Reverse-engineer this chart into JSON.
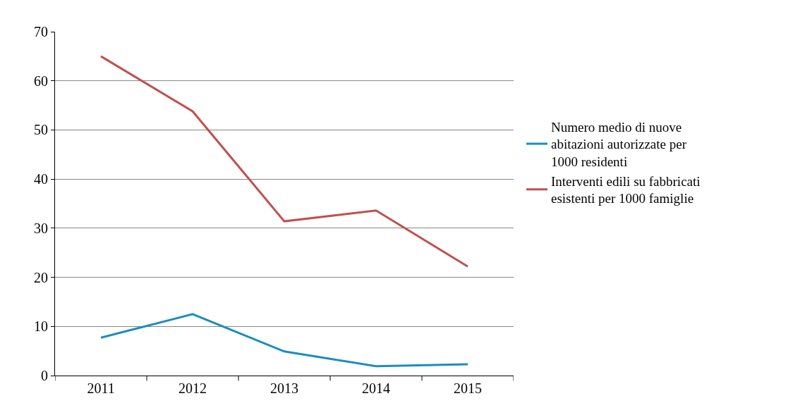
{
  "chart_data": {
    "type": "line",
    "categories": [
      "2011",
      "2012",
      "2013",
      "2014",
      "2015"
    ],
    "series": [
      {
        "name": "Numero medio di nuove abitazioni autorizzate per 1000 residenti",
        "color": "#1b8dbf",
        "values": [
          7.7,
          12.5,
          4.9,
          1.9,
          2.3
        ]
      },
      {
        "name": "Interventi edili su fabbricati esistenti per 1000 famiglie",
        "color": "#c0504d",
        "values": [
          65,
          53.8,
          31.4,
          33.6,
          22.2
        ]
      }
    ],
    "ylim": [
      0,
      70
    ],
    "yticks": [
      0,
      10,
      20,
      30,
      40,
      50,
      60,
      70
    ],
    "grid": "y",
    "legend": "right",
    "marker": "none",
    "line_style": "solid"
  }
}
